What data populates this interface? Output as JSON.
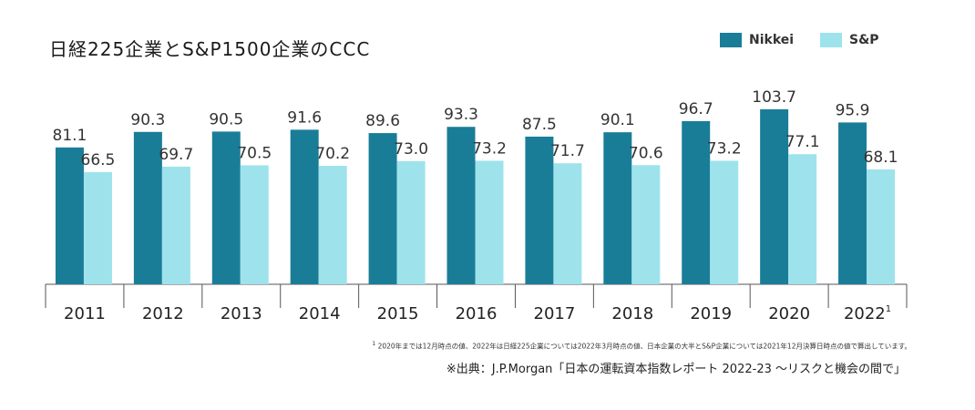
{
  "chart_data": {
    "type": "bar",
    "title": "日経225企業とS&P1500企業のCCC",
    "categories": [
      "2011",
      "2012",
      "2013",
      "2014",
      "2015",
      "2016",
      "2017",
      "2018",
      "2019",
      "2020",
      "2022"
    ],
    "category_superscripts": {
      "2022": "1"
    },
    "series": [
      {
        "name": "Nikkei",
        "color": "#1a7d98",
        "values": [
          81.1,
          90.3,
          90.5,
          91.6,
          89.6,
          93.3,
          87.5,
          90.1,
          96.7,
          103.7,
          95.9
        ]
      },
      {
        "name": "S&P",
        "color": "#9ee3ec",
        "values": [
          66.5,
          69.7,
          70.5,
          70.2,
          73.0,
          73.2,
          71.7,
          70.6,
          73.2,
          77.1,
          68.1
        ]
      }
    ],
    "ylim": [
      0,
      108
    ],
    "grid": false,
    "legend_position": "top-right"
  },
  "footnote": {
    "mark": "1",
    "text": "2020年までは12月時点の値、2022年は日経225企業については2022年3月時点の値、日本企業の大半とS&P企業については2021年12月決算日時点の値で算出しています。"
  },
  "source": "※出典：J.P.Morgan「日本の運転資本指数レポート 2022-23 ～リスクと機会の間で」"
}
